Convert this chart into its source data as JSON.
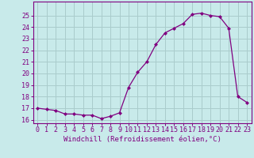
{
  "x": [
    0,
    1,
    2,
    3,
    4,
    5,
    6,
    7,
    8,
    9,
    10,
    11,
    12,
    13,
    14,
    15,
    16,
    17,
    18,
    19,
    20,
    21,
    22,
    23
  ],
  "y": [
    17.0,
    16.9,
    16.8,
    16.5,
    16.5,
    16.4,
    16.4,
    16.1,
    16.3,
    16.6,
    18.8,
    20.1,
    21.0,
    22.5,
    23.5,
    23.9,
    24.3,
    25.1,
    25.2,
    25.0,
    24.9,
    23.9,
    18.0,
    17.5
  ],
  "line_color": "#800080",
  "marker": "D",
  "marker_size": 2,
  "bg_color": "#c8eaea",
  "grid_color": "#aacccc",
  "xlabel": "Windchill (Refroidissement éolien,°C)",
  "xlabel_fontsize": 6.5,
  "ylabel_ticks": [
    16,
    17,
    18,
    19,
    20,
    21,
    22,
    23,
    24,
    25
  ],
  "xlim": [
    -0.5,
    23.5
  ],
  "ylim": [
    15.7,
    26.2
  ],
  "tick_fontsize": 6.0
}
